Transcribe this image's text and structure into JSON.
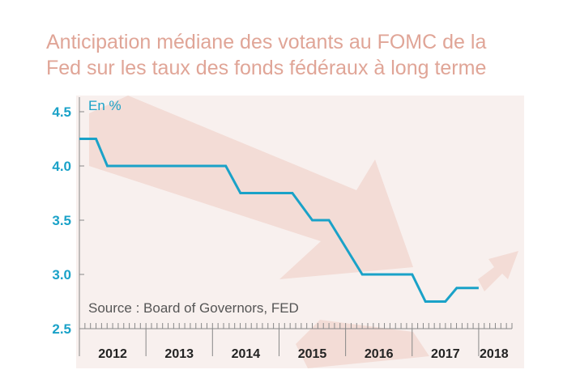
{
  "header": {
    "title_line1": "Anticipation médiane des votants au FOMC de la",
    "title_line2": "Fed sur les taux des fonds fédéraux à long terme"
  },
  "colors": {
    "title": "#e0a597",
    "panel": "#f8f0ee",
    "decor_arrow": "#f3dcd6",
    "series": "#1aa2c8",
    "axis_labels": "#1aa2c8",
    "axis_line": "#888888"
  },
  "chart_data": {
    "type": "line",
    "title": "Anticipation médiane des votants au FOMC de la Fed sur les taux des fonds fédéraux à long terme",
    "unit_label": "En %",
    "source": "Source : Board of Governors, FED",
    "ylim": [
      2.5,
      4.5
    ],
    "y_ticks": [
      "4.5",
      "4.0",
      "3.5",
      "3.0",
      "2.5"
    ],
    "y_tick_values": [
      4.5,
      4.0,
      3.5,
      3.0,
      2.5
    ],
    "x_range": [
      2011.75,
      2018.25
    ],
    "x_tick_labels": [
      "2012",
      "2013",
      "2014",
      "2015",
      "2016",
      "2017",
      "2018"
    ],
    "x_label_positions": [
      2012.25,
      2013.25,
      2014.25,
      2015.25,
      2016.25,
      2017.25,
      2017.98
    ],
    "x_year_boundaries": [
      2011.75,
      2012.75,
      2013.75,
      2014.75,
      2015.75,
      2016.75,
      2017.75
    ],
    "grid": false,
    "series": [
      {
        "color": "#1aa2c8",
        "points": [
          [
            2011.75,
            4.25
          ],
          [
            2012.0,
            4.25
          ],
          [
            2012.17,
            4.0
          ],
          [
            2013.0,
            4.0
          ],
          [
            2013.95,
            4.0
          ],
          [
            2014.17,
            3.75
          ],
          [
            2014.95,
            3.75
          ],
          [
            2015.25,
            3.5
          ],
          [
            2015.5,
            3.5
          ],
          [
            2016.0,
            3.0
          ],
          [
            2016.75,
            3.0
          ],
          [
            2016.95,
            2.75
          ],
          [
            2017.25,
            2.75
          ],
          [
            2017.42,
            2.875
          ],
          [
            2017.75,
            2.875
          ]
        ]
      }
    ]
  }
}
